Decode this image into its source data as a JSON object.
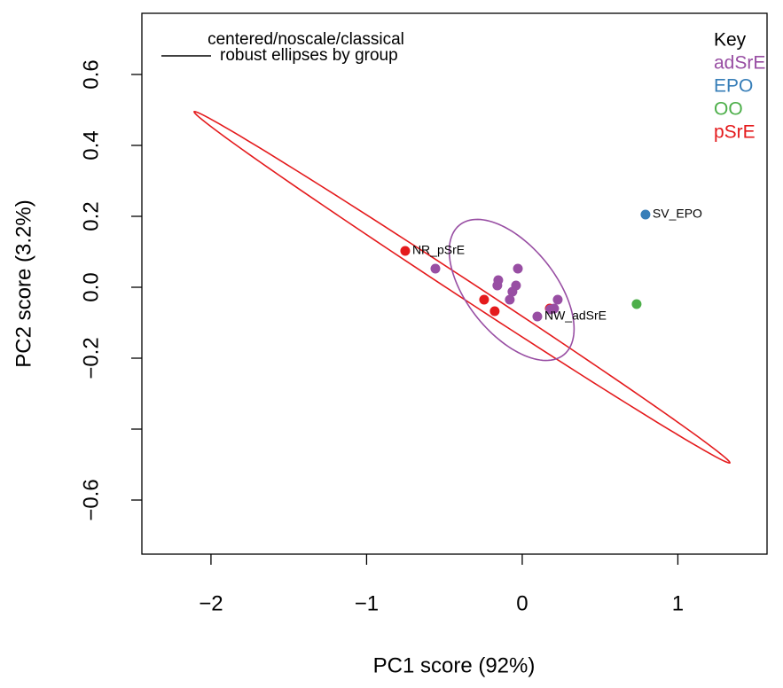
{
  "chart_data": {
    "type": "scatter",
    "xlabel": "PC1 score (92%)",
    "ylabel": "PC2 score (3.2%)",
    "xlim": [
      -2.444,
      1.573
    ],
    "ylim": [
      -0.7525,
      0.7725
    ],
    "xticks": [
      {
        "value": -2,
        "label": "−2"
      },
      {
        "value": -1,
        "label": "−1"
      },
      0,
      1
    ],
    "yticks": [
      {
        "value": -0.6,
        "label": "−0.6"
      },
      {
        "value": -0.4,
        "label": null
      },
      {
        "value": -0.2,
        "label": "−0.2"
      },
      {
        "value": 0,
        "label": "0.0"
      },
      0.2,
      0.4,
      0.6
    ],
    "grid": false,
    "legend": {
      "position": "top-left",
      "title": "centered/noscale/classical",
      "entries": [
        "robust ellipses by group"
      ]
    },
    "key": {
      "position": "top-right",
      "title": "Key"
    },
    "series": [
      {
        "name": "adSrE",
        "color": "#984ea3",
        "x": [
          -0.558,
          -0.154,
          -0.16,
          -0.028,
          -0.04,
          -0.063,
          -0.08,
          0.228,
          0.205,
          0.18,
          0.097
        ],
        "y": [
          0.0525,
          0.02,
          0.005,
          0.0525,
          0.005,
          -0.0125,
          -0.035,
          -0.035,
          -0.06,
          -0.0625,
          -0.0825
        ],
        "labels": [
          null,
          null,
          null,
          null,
          null,
          null,
          null,
          null,
          null,
          null,
          "NW_adSrE"
        ],
        "ellipse": {
          "center": [
            -0.068,
            -0.0075
          ],
          "u": [
            0.336,
            -0.1825
          ],
          "v": [
            0.219,
            0.079
          ]
        }
      },
      {
        "name": "EPO",
        "color": "#377eb8",
        "x": [
          0.792
        ],
        "y": [
          0.205
        ],
        "labels": [
          "SV_EPO"
        ]
      },
      {
        "name": "OO",
        "color": "#4daf4a",
        "x": [
          0.735
        ],
        "y": [
          -0.0475
        ],
        "labels": [
          null
        ]
      },
      {
        "name": "pSrE",
        "color": "#e41a1c",
        "x": [
          -0.752,
          -0.245,
          -0.177,
          0.177
        ],
        "y": [
          0.1025,
          -0.035,
          -0.0675,
          -0.06
        ],
        "labels": [
          "NR_pSrE",
          null,
          null,
          null
        ],
        "ellipse": {
          "center": [
            -0.387,
            0.0
          ],
          "u": [
            1.721,
            -0.495
          ],
          "v": [
            -0.031,
            -0.021
          ]
        }
      }
    ]
  }
}
